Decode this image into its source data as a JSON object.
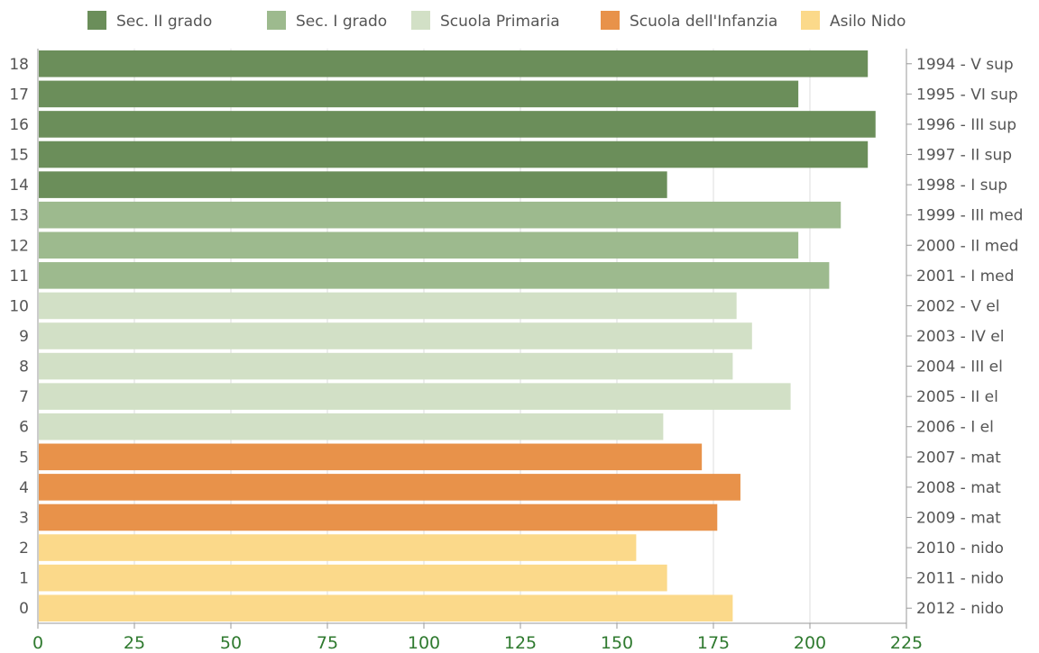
{
  "chart_data": {
    "type": "bar",
    "orientation": "horizontal",
    "title": "",
    "xlabel": "",
    "ylabel": "",
    "xlim": [
      0,
      225
    ],
    "x_ticks": [
      "0",
      "25",
      "50",
      "75",
      "100",
      "125",
      "150",
      "175",
      "200",
      "225"
    ],
    "grid": true,
    "legend_position": "top",
    "legend": [
      {
        "name": "Sec. II grado",
        "color": "#6b8e5a"
      },
      {
        "name": "Sec. I grado",
        "color": "#9dba8e"
      },
      {
        "name": "Scuola Primaria",
        "color": "#d2e0c6"
      },
      {
        "name": "Scuola dell'Infanzia",
        "color": "#e8924a"
      },
      {
        "name": "Asilo Nido",
        "color": "#fbd98a"
      }
    ],
    "categories": [
      "18",
      "17",
      "16",
      "15",
      "14",
      "13",
      "12",
      "11",
      "10",
      "9",
      "8",
      "7",
      "6",
      "5",
      "4",
      "3",
      "2",
      "1",
      "0"
    ],
    "right_labels": [
      "1994 - V sup",
      "1995 - VI sup",
      "1996 - III sup",
      "1997 - II sup",
      "1998 - I sup",
      "1999 - III med",
      "2000 - II med",
      "2001 - I med",
      "2002 - V el",
      "2003 - IV el",
      "2004 - III el",
      "2005 - II el",
      "2006 - I el",
      "2007 - mat",
      "2008 - mat",
      "2009 - mat",
      "2010 - nido",
      "2011 - nido",
      "2012 - nido"
    ],
    "values": [
      215,
      197,
      217,
      215,
      163,
      208,
      197,
      205,
      181,
      185,
      180,
      195,
      162,
      172,
      182,
      176,
      155,
      163,
      180
    ],
    "bar_groups": [
      0,
      0,
      0,
      0,
      0,
      1,
      1,
      1,
      2,
      2,
      2,
      2,
      2,
      3,
      3,
      3,
      4,
      4,
      4
    ]
  }
}
